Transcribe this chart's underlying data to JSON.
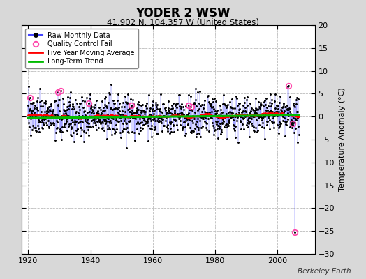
{
  "title": "YODER 2 WSW",
  "subtitle": "41.902 N, 104.357 W (United States)",
  "ylabel": "Temperature Anomaly (°C)",
  "credit": "Berkeley Earth",
  "xlim": [
    1918,
    2012
  ],
  "ylim": [
    -30,
    20
  ],
  "yticks": [
    -30,
    -25,
    -20,
    -15,
    -10,
    -5,
    0,
    5,
    10,
    15,
    20
  ],
  "xticks": [
    1920,
    1940,
    1960,
    1980,
    2000
  ],
  "fig_bg_color": "#d8d8d8",
  "plot_bg_color": "#ffffff",
  "raw_line_color": "#4444ff",
  "raw_dot_color": "#000000",
  "qc_color": "#ff44aa",
  "moving_avg_color": "#ff0000",
  "trend_color": "#00bb00",
  "seed": 137,
  "n_months": 1044,
  "start_year": 1920.0,
  "noise_std": 2.2,
  "trend_slope": 0.003,
  "big_spike_year": 2005.5,
  "big_spike_value": -25.3,
  "qc_positions": [
    [
      1920.5,
      4.2
    ],
    [
      1929.5,
      5.3
    ],
    [
      1930.5,
      5.7
    ],
    [
      1939.5,
      3.0
    ],
    [
      1953.0,
      2.5
    ],
    [
      1971.5,
      2.4
    ],
    [
      1972.3,
      2.2
    ],
    [
      2003.5,
      6.7
    ],
    [
      2005.0,
      -1.5
    ],
    [
      2005.5,
      -25.3
    ]
  ]
}
